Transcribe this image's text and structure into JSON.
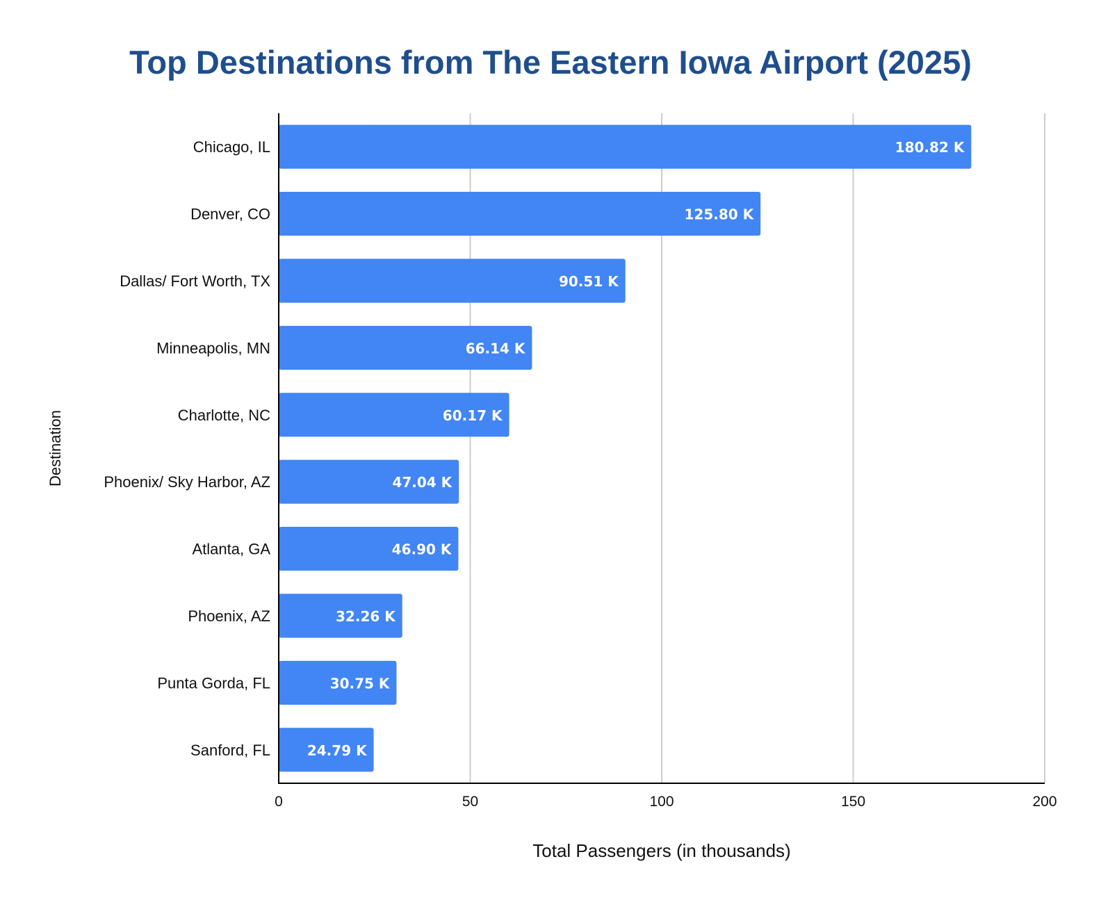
{
  "chart_data": {
    "type": "bar",
    "orientation": "horizontal",
    "title": "Top Destinations from The Eastern Iowa Airport (2025)",
    "xlabel": "Total Passengers (in thousands)",
    "ylabel": "Destination",
    "categories": [
      "Chicago, IL",
      "Denver, CO",
      "Dallas/ Fort Worth, TX",
      "Minneapolis, MN",
      "Charlotte, NC",
      "Phoenix/ Sky Harbor, AZ",
      "Atlanta, GA",
      "Phoenix, AZ",
      "Punta Gorda, FL",
      "Sanford, FL"
    ],
    "values": [
      180.82,
      125.8,
      90.51,
      66.14,
      60.17,
      47.04,
      46.9,
      32.26,
      30.75,
      24.79
    ],
    "value_labels": [
      "180.82 K",
      "125.80 K",
      "90.51 K",
      "66.14 K",
      "60.17 K",
      "47.04 K",
      "46.90 K",
      "32.26 K",
      "30.75 K",
      "24.79 K"
    ],
    "xlim": [
      0,
      200
    ],
    "xticks": [
      "0",
      "50",
      "100",
      "150",
      "200"
    ],
    "grid": true,
    "legend": "none",
    "colors": {
      "bar": "#4285f4",
      "title": "#1f4e8c",
      "grid": "#cccccc",
      "axis": "#000000"
    }
  }
}
